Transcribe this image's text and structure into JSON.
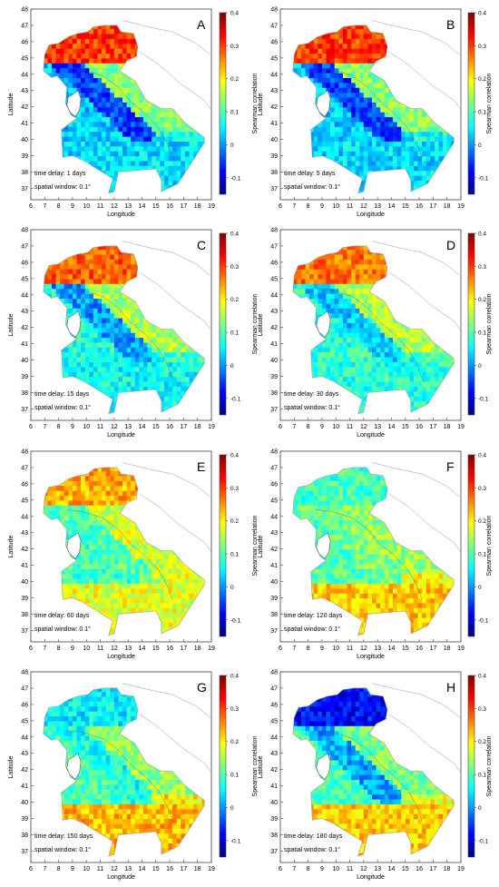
{
  "figure": {
    "xlabel": "Longitude",
    "ylabel": "Latitude",
    "colorbar_label": "Spearman correlation",
    "x_ticks": [
      "6",
      "7",
      "8",
      "9",
      "10",
      "11",
      "12",
      "13",
      "14",
      "15",
      "16",
      "17",
      "18",
      "19"
    ],
    "y_ticks": [
      "37",
      "38",
      "39",
      "40",
      "41",
      "42",
      "43",
      "44",
      "45",
      "46",
      "47",
      "48"
    ],
    "colorbar_ticks": [
      "-0.1",
      "0",
      "0.1",
      "0.2",
      "0.3",
      "0.4"
    ],
    "xlim": [
      6,
      19
    ],
    "ylim": [
      36.3,
      48
    ],
    "clim": [
      -0.15,
      0.4
    ],
    "colormap": [
      "#00007f",
      "#0000ff",
      "#007fff",
      "#00ffff",
      "#7fff7f",
      "#ffff00",
      "#ff7f00",
      "#ff0000",
      "#7f0000"
    ],
    "land_outline_color": "#9a9a9a"
  },
  "chart_data": [
    {
      "type": "heatmap",
      "panel_label": "A",
      "time_delay_text": "time delay: 1 days",
      "spatial_window_text": "spatial window: 0.1°",
      "regions": {
        "north": 0.3,
        "center": 0.1,
        "tyrrhenian": 0.03,
        "apennine": -0.05,
        "adriatic": 0.13,
        "south": 0.04
      }
    },
    {
      "type": "heatmap",
      "panel_label": "B",
      "time_delay_text": "time delay: 5 days",
      "spatial_window_text": "spatial window: 0.1°",
      "regions": {
        "north": 0.3,
        "center": 0.1,
        "tyrrhenian": 0.03,
        "apennine": -0.05,
        "adriatic": 0.13,
        "south": 0.04
      }
    },
    {
      "type": "heatmap",
      "panel_label": "C",
      "time_delay_text": "time delay: 15 days",
      "spatial_window_text": "spatial window: 0.1°",
      "regions": {
        "north": 0.28,
        "center": 0.14,
        "tyrrhenian": 0.07,
        "apennine": 0.0,
        "adriatic": 0.15,
        "south": 0.06
      }
    },
    {
      "type": "heatmap",
      "panel_label": "D",
      "time_delay_text": "time delay: 30 days",
      "spatial_window_text": "spatial window: 0.1°",
      "regions": {
        "north": 0.27,
        "center": 0.14,
        "tyrrhenian": 0.08,
        "apennine": 0.03,
        "adriatic": 0.15,
        "south": 0.08
      }
    },
    {
      "type": "heatmap",
      "panel_label": "E",
      "time_delay_text": "time delay: 60 days",
      "spatial_window_text": "spatial window: 0.1°",
      "regions": {
        "north": 0.24,
        "center": 0.15,
        "tyrrhenian": 0.09,
        "apennine": 0.1,
        "adriatic": 0.17,
        "south": 0.18
      }
    },
    {
      "type": "heatmap",
      "panel_label": "F",
      "time_delay_text": "time delay: 120 days",
      "spatial_window_text": "spatial window: 0.1°",
      "regions": {
        "north": 0.09,
        "center": 0.11,
        "tyrrhenian": 0.1,
        "apennine": 0.12,
        "adriatic": 0.14,
        "south": 0.22
      }
    },
    {
      "type": "heatmap",
      "panel_label": "G",
      "time_delay_text": "time delay: 150 days",
      "spatial_window_text": "spatial window: 0.1°",
      "regions": {
        "north": 0.05,
        "center": 0.09,
        "tyrrhenian": 0.1,
        "apennine": 0.07,
        "adriatic": 0.14,
        "south": 0.23
      }
    },
    {
      "type": "heatmap",
      "panel_label": "H",
      "time_delay_text": "time delay: 180 days",
      "spatial_window_text": "spatial window: 0.1°",
      "regions": {
        "north": -0.08,
        "center": 0.02,
        "tyrrhenian": 0.1,
        "apennine": 0.01,
        "adriatic": 0.12,
        "south": 0.22
      }
    }
  ]
}
